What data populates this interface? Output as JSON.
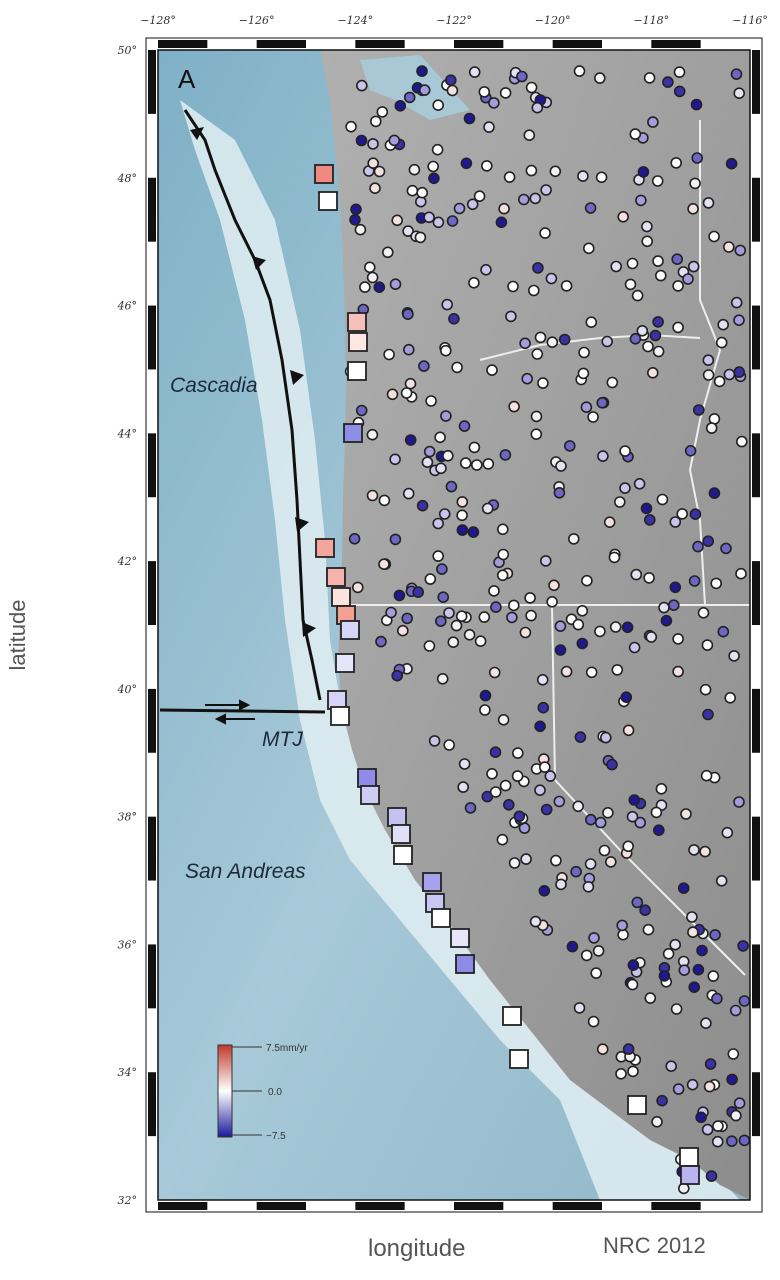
{
  "panel_label": "A",
  "axes": {
    "xlabel": "longitude",
    "ylabel": "latitude",
    "x_ticks": [
      "−128°",
      "−126°",
      "−124°",
      "−122°",
      "−120°",
      "−118°",
      "−116°"
    ],
    "y_ticks": [
      "50°",
      "48°",
      "46°",
      "44°",
      "42°",
      "40°",
      "38°",
      "36°",
      "34°",
      "32°"
    ],
    "lon_range": [
      -128,
      -116
    ],
    "lat_range": [
      32,
      50
    ]
  },
  "credit": "NRC 2012",
  "regions": {
    "cascadia": "Cascadia",
    "mtj": "MTJ",
    "san_andreas": "San Andreas"
  },
  "colorbar": {
    "max_label": "7.5mm/yr",
    "mid_label": "0.0",
    "min_label": "−7.5",
    "colors": [
      "#c0392b",
      "#ffffff",
      "#1a1a9c"
    ]
  },
  "legend_meaning": {
    "square": "tide gauge station",
    "circle": "GPS station"
  },
  "colors": {
    "ocean": "#a8c8d8",
    "land": "#9a9a9a",
    "fault": "#111111"
  }
}
